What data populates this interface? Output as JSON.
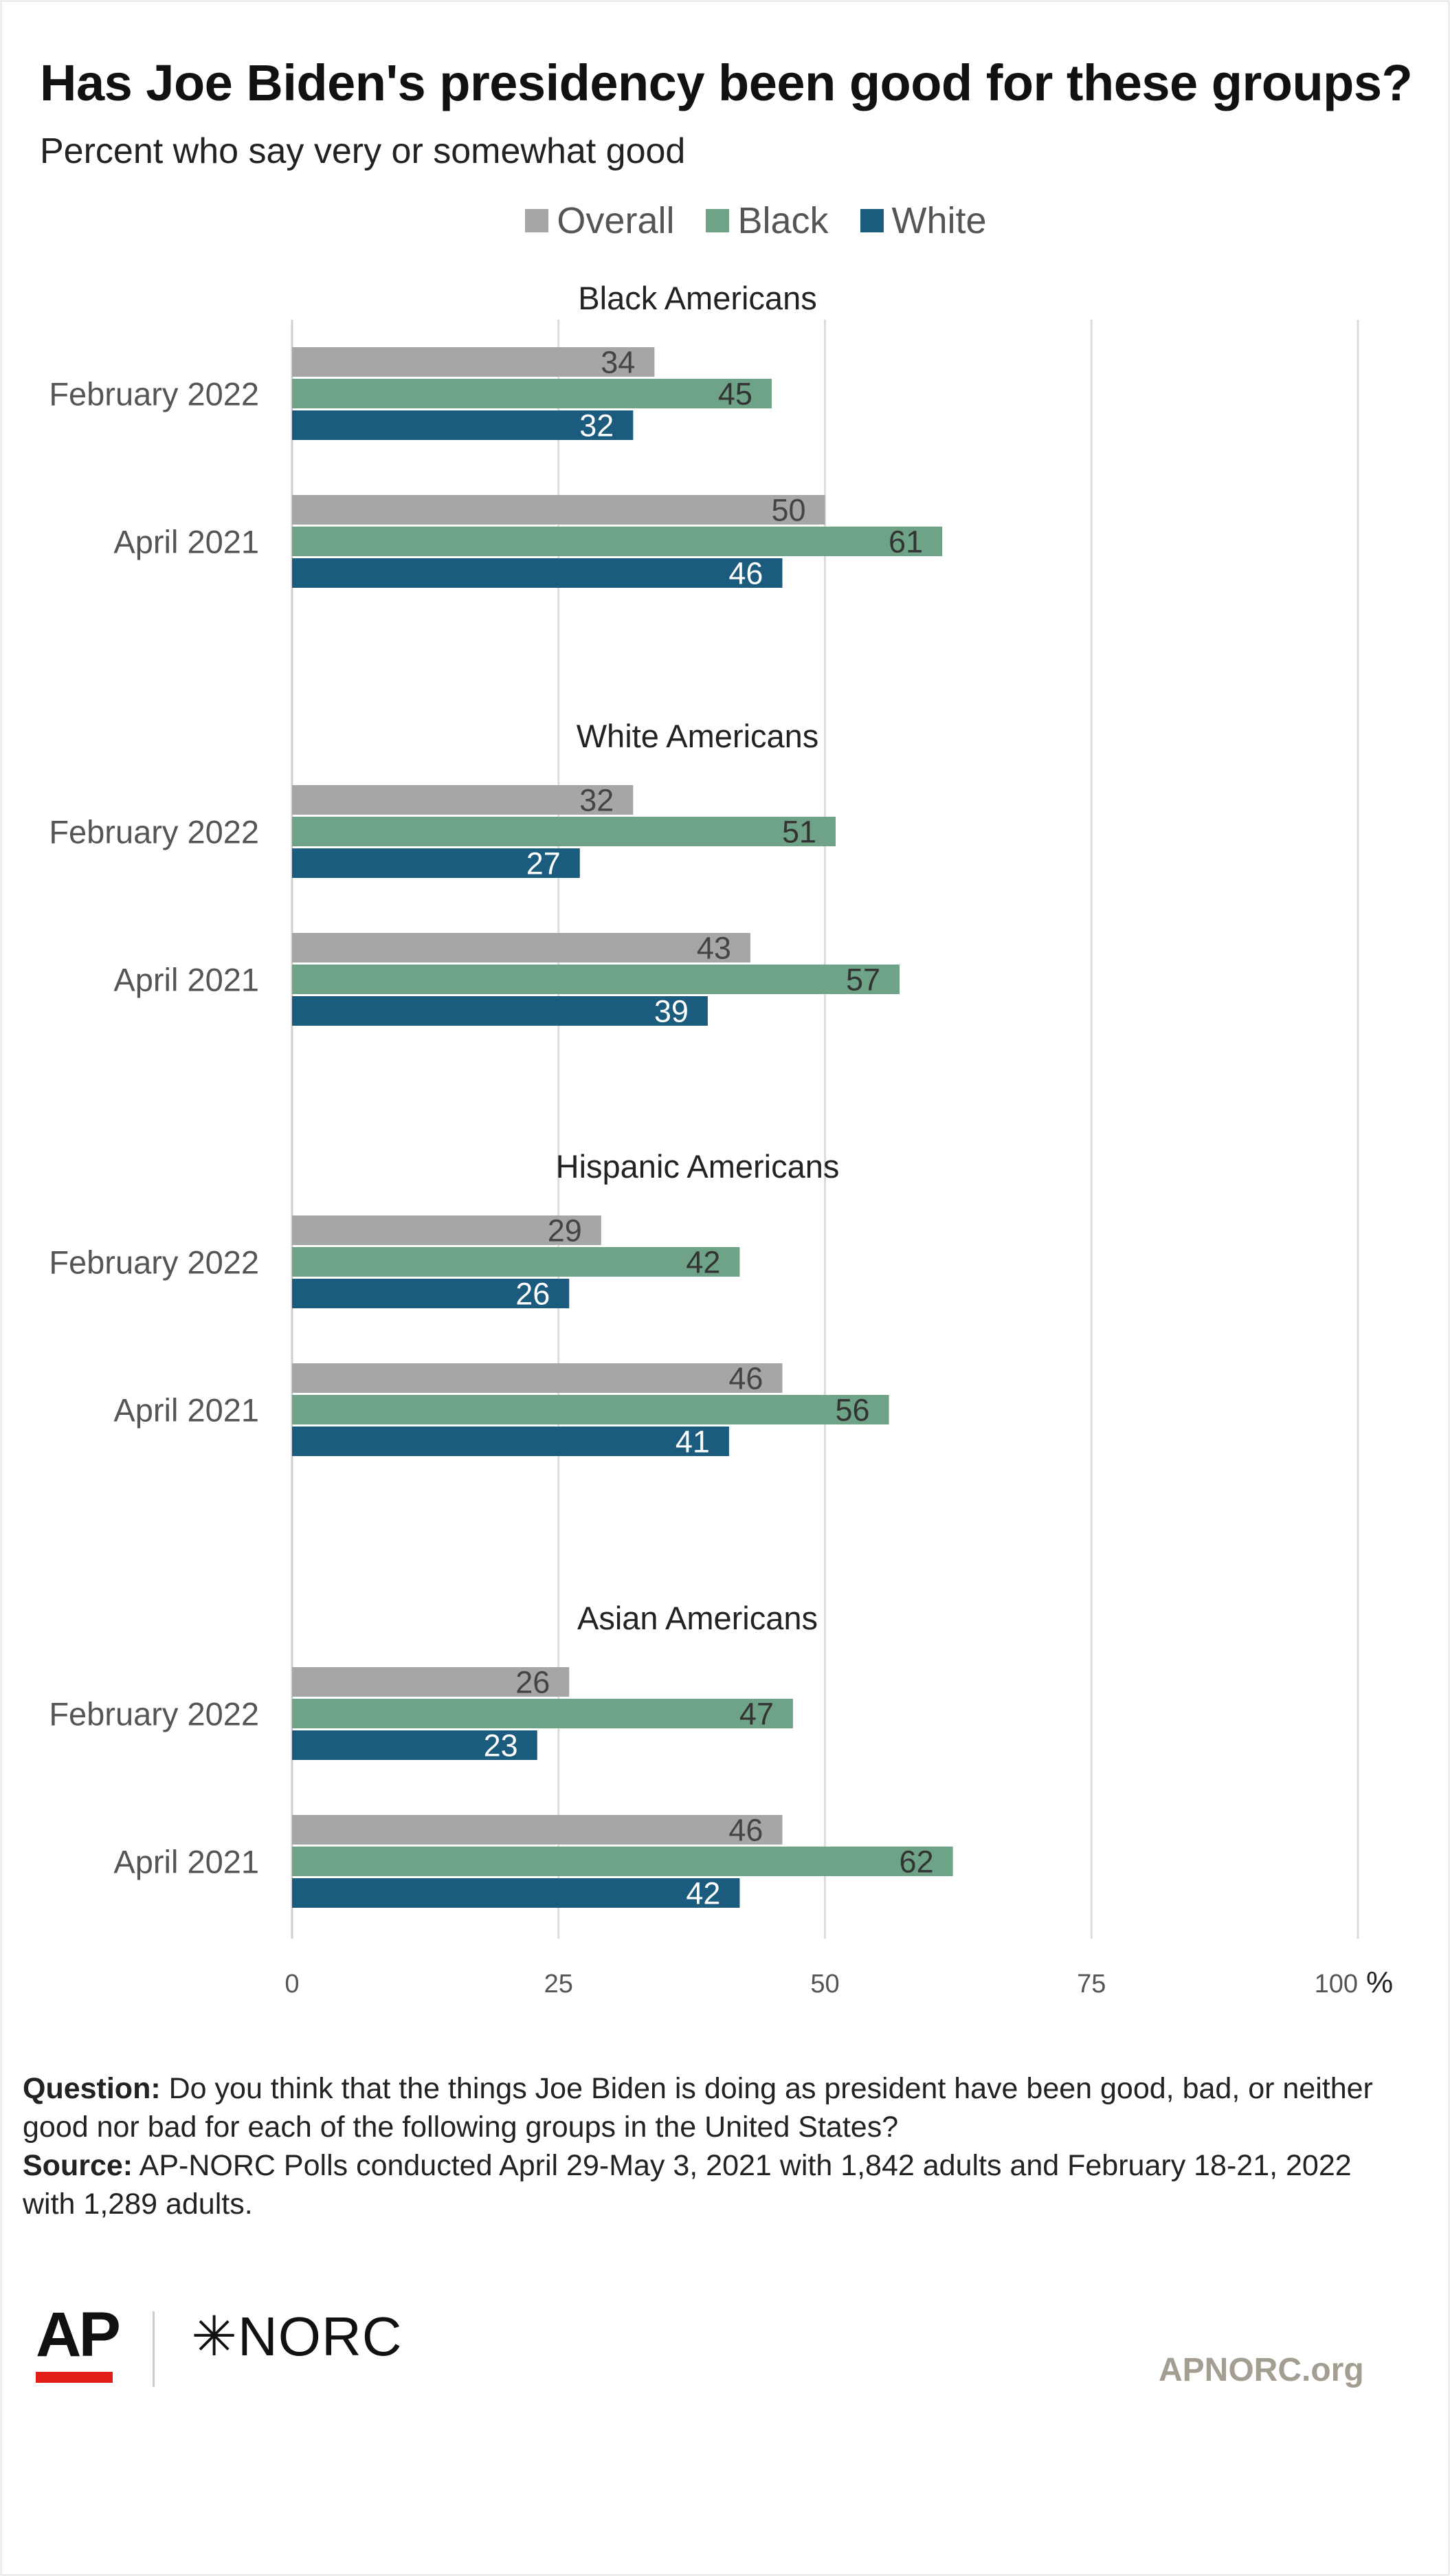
{
  "header": {
    "title": "Has Joe Biden's presidency been good for these groups?",
    "subtitle": "Percent who say very or somewhat good"
  },
  "legend": [
    {
      "label": "Overall",
      "color": "#a6a6a6"
    },
    {
      "label": "Black",
      "color": "#6fa387"
    },
    {
      "label": "White",
      "color": "#1b5b7d"
    }
  ],
  "chart_data": {
    "type": "bar",
    "orientation": "horizontal",
    "xlim": [
      0,
      100
    ],
    "x_ticks": [
      "0",
      "25",
      "50",
      "75",
      "100"
    ],
    "x_unit": "%",
    "grid": true,
    "legend_position": "top",
    "series_colors": {
      "Overall": "#a6a6a6",
      "Black": "#6fa387",
      "White": "#1b5b7d"
    },
    "groups": [
      {
        "title": "Black Americans",
        "rows": [
          {
            "label": "February 2022",
            "values": {
              "Overall": 34,
              "Black": 45,
              "White": 32
            }
          },
          {
            "label": "April 2021",
            "values": {
              "Overall": 50,
              "Black": 61,
              "White": 46
            }
          }
        ]
      },
      {
        "title": "White Americans",
        "rows": [
          {
            "label": "February 2022",
            "values": {
              "Overall": 32,
              "Black": 51,
              "White": 27
            }
          },
          {
            "label": "April 2021",
            "values": {
              "Overall": 43,
              "Black": 57,
              "White": 39
            }
          }
        ]
      },
      {
        "title": "Hispanic Americans",
        "rows": [
          {
            "label": "February 2022",
            "values": {
              "Overall": 29,
              "Black": 42,
              "White": 26
            }
          },
          {
            "label": "April 2021",
            "values": {
              "Overall": 46,
              "Black": 56,
              "White": 41
            }
          }
        ]
      },
      {
        "title": "Asian Americans",
        "rows": [
          {
            "label": "February 2022",
            "values": {
              "Overall": 26,
              "Black": 47,
              "White": 23
            }
          },
          {
            "label": "April 2021",
            "values": {
              "Overall": 46,
              "Black": 62,
              "White": 42
            }
          }
        ]
      }
    ]
  },
  "footer": {
    "question_label": "Question:",
    "question_text": " Do you think that the things Joe Biden is doing as president have been good, bad, or neither good nor bad for each of the following groups in the United States?",
    "source_label": "Source:",
    "source_text": " AP-NORC Polls conducted April 29-May 3, 2021 with 1,842 adults and February 18-21, 2022 with 1,289 adults."
  },
  "branding": {
    "ap": "AP",
    "norc": "NORC",
    "site": "APNORC.org"
  }
}
